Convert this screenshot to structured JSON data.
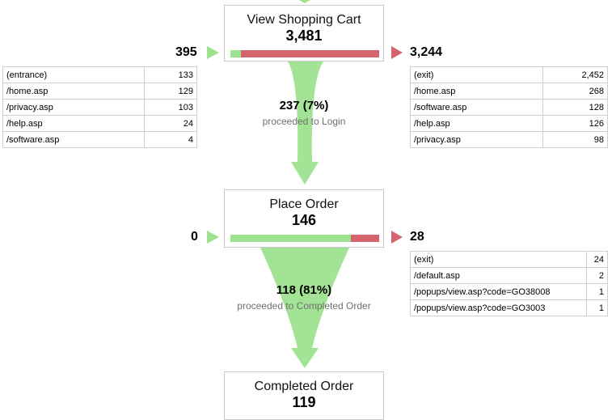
{
  "colors": {
    "proceed": "#9ee28f",
    "exit": "#d6646f",
    "border": "#c9c9c9"
  },
  "chart_data": {
    "type": "table",
    "steps": [
      {
        "name": "View Shopping Cart",
        "count": "3,481",
        "entries_total": "395",
        "exits_total": "3,244",
        "proceed_fraction": 0.07,
        "entries": [
          {
            "page": "(entrance)",
            "value": "133"
          },
          {
            "page": "/home.asp",
            "value": "129"
          },
          {
            "page": "/privacy.asp",
            "value": "103"
          },
          {
            "page": "/help.asp",
            "value": "24"
          },
          {
            "page": "/software.asp",
            "value": "4"
          }
        ],
        "exits": [
          {
            "page": "(exit)",
            "value": "2,452"
          },
          {
            "page": "/home.asp",
            "value": "268"
          },
          {
            "page": "/software.asp",
            "value": "128"
          },
          {
            "page": "/help.asp",
            "value": "126"
          },
          {
            "page": "/privacy.asp",
            "value": "98"
          }
        ],
        "proceeded_count": "237 (7%)",
        "proceeded_label": "proceeded to Login"
      },
      {
        "name": "Place Order",
        "count": "146",
        "entries_total": "0",
        "exits_total": "28",
        "proceed_fraction": 0.81,
        "entries": [],
        "exits": [
          {
            "page": "(exit)",
            "value": "24"
          },
          {
            "page": "/default.asp",
            "value": "2"
          },
          {
            "page": "/popups/view.asp?code=GO38008",
            "value": "1"
          },
          {
            "page": "/popups/view.asp?code=GO3003",
            "value": "1"
          }
        ],
        "proceeded_count": "118 (81%)",
        "proceeded_label": "proceeded to Completed Order"
      },
      {
        "name": "Completed Order",
        "count": "119"
      }
    ]
  }
}
